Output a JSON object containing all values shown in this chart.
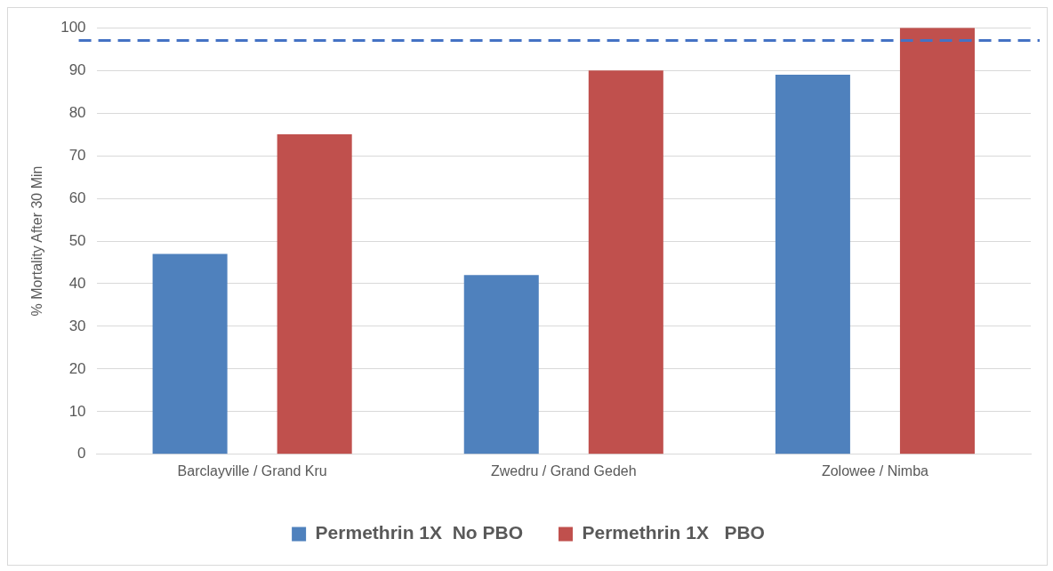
{
  "chart_data": {
    "type": "bar",
    "ylabel": "% Mortality After 30 Min",
    "categories": [
      "Barclayville / Grand Kru",
      "Zwedru / Grand Gedeh",
      "Zolowee / Nimba"
    ],
    "series": [
      {
        "name": "Permethrin 1X  No PBO",
        "color": "#4f81bd",
        "values": [
          47,
          42,
          89
        ]
      },
      {
        "name": "Permethrin 1X   PBO",
        "color": "#c0504d",
        "values": [
          75,
          90,
          100
        ]
      }
    ],
    "ylim": [
      0,
      100
    ],
    "yticks": [
      0,
      10,
      20,
      30,
      40,
      50,
      60,
      70,
      80,
      90,
      100
    ],
    "grid": "y",
    "legend": "bottom",
    "ref_lines": [
      {
        "axis": "y",
        "value": 97,
        "color": "#4472c4",
        "line_style": "dashed"
      }
    ]
  }
}
